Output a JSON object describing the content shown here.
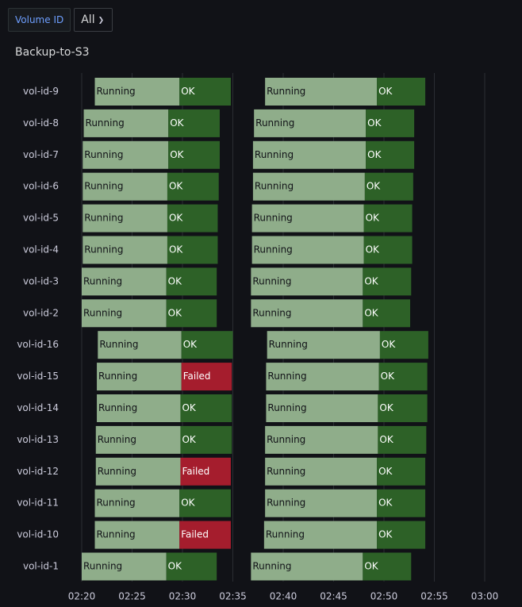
{
  "variables": {
    "label": "Volume ID",
    "value": "All"
  },
  "panel": {
    "title": "Backup-to-S3"
  },
  "colors": {
    "running": "#8fad8a",
    "ok": "#2d6127",
    "failed": "#a51d2d",
    "running_text": "#111217",
    "ok_text": "#ffffff",
    "failed_text": "#ffffff",
    "grid": "#2a2d33"
  },
  "chart_data": {
    "type": "state-timeline",
    "title": "Backup-to-S3",
    "x_tick_labels": [
      "02:20",
      "02:25",
      "02:30",
      "02:35",
      "02:40",
      "02:45",
      "02:50",
      "02:55",
      "03:00"
    ],
    "x_range": [
      "02:20",
      "03:01"
    ],
    "grid": true,
    "rows": [
      {
        "label": "vol-id-9",
        "segments": [
          {
            "state": "Running",
            "start": "02:21.3",
            "end": "02:29.7"
          },
          {
            "state": "OK",
            "start": "02:29.7",
            "end": "02:34.8"
          },
          {
            "state": "Running",
            "start": "02:38.2",
            "end": "02:49.3"
          },
          {
            "state": "OK",
            "start": "02:49.3",
            "end": "02:54.1"
          }
        ]
      },
      {
        "label": "vol-id-8",
        "segments": [
          {
            "state": "Running",
            "start": "02:20.2",
            "end": "02:28.6"
          },
          {
            "state": "OK",
            "start": "02:28.6",
            "end": "02:33.7"
          },
          {
            "state": "Running",
            "start": "02:37.1",
            "end": "02:48.2"
          },
          {
            "state": "OK",
            "start": "02:48.2",
            "end": "02:53.0"
          }
        ]
      },
      {
        "label": "vol-id-7",
        "segments": [
          {
            "state": "Running",
            "start": "02:20.1",
            "end": "02:28.6"
          },
          {
            "state": "OK",
            "start": "02:28.6",
            "end": "02:33.7"
          },
          {
            "state": "Running",
            "start": "02:37.0",
            "end": "02:48.2"
          },
          {
            "state": "OK",
            "start": "02:48.2",
            "end": "02:53.0"
          }
        ]
      },
      {
        "label": "vol-id-6",
        "segments": [
          {
            "state": "Running",
            "start": "02:20.1",
            "end": "02:28.5"
          },
          {
            "state": "OK",
            "start": "02:28.5",
            "end": "02:33.6"
          },
          {
            "state": "Running",
            "start": "02:37.0",
            "end": "02:48.1"
          },
          {
            "state": "OK",
            "start": "02:48.1",
            "end": "02:52.9"
          }
        ]
      },
      {
        "label": "vol-id-5",
        "segments": [
          {
            "state": "Running",
            "start": "02:20.1",
            "end": "02:28.5"
          },
          {
            "state": "OK",
            "start": "02:28.5",
            "end": "02:33.5"
          },
          {
            "state": "Running",
            "start": "02:36.9",
            "end": "02:48.0"
          },
          {
            "state": "OK",
            "start": "02:48.0",
            "end": "02:52.8"
          }
        ]
      },
      {
        "label": "vol-id-4",
        "segments": [
          {
            "state": "Running",
            "start": "02:20.1",
            "end": "02:28.5"
          },
          {
            "state": "OK",
            "start": "02:28.5",
            "end": "02:33.5"
          },
          {
            "state": "Running",
            "start": "02:36.9",
            "end": "02:48.0"
          },
          {
            "state": "OK",
            "start": "02:48.0",
            "end": "02:52.8"
          }
        ]
      },
      {
        "label": "vol-id-3",
        "segments": [
          {
            "state": "Running",
            "start": "02:20.0",
            "end": "02:28.4"
          },
          {
            "state": "OK",
            "start": "02:28.4",
            "end": "02:33.4"
          },
          {
            "state": "Running",
            "start": "02:36.8",
            "end": "02:47.9"
          },
          {
            "state": "OK",
            "start": "02:47.9",
            "end": "02:52.7"
          }
        ]
      },
      {
        "label": "vol-id-2",
        "segments": [
          {
            "state": "Running",
            "start": "02:20.0",
            "end": "02:28.4"
          },
          {
            "state": "OK",
            "start": "02:28.4",
            "end": "02:33.4"
          },
          {
            "state": "Running",
            "start": "02:36.8",
            "end": "02:47.9"
          },
          {
            "state": "OK",
            "start": "02:47.9",
            "end": "02:52.6"
          }
        ]
      },
      {
        "label": "vol-id-16",
        "segments": [
          {
            "state": "Running",
            "start": "02:21.6",
            "end": "02:29.9"
          },
          {
            "state": "OK",
            "start": "02:29.9",
            "end": "02:35.0"
          },
          {
            "state": "Running",
            "start": "02:38.4",
            "end": "02:49.6"
          },
          {
            "state": "OK",
            "start": "02:49.6",
            "end": "02:54.4"
          }
        ]
      },
      {
        "label": "vol-id-15",
        "segments": [
          {
            "state": "Running",
            "start": "02:21.5",
            "end": "02:29.9"
          },
          {
            "state": "Failed",
            "start": "02:29.9",
            "end": "02:34.9"
          },
          {
            "state": "Running",
            "start": "02:38.3",
            "end": "02:49.5"
          },
          {
            "state": "OK",
            "start": "02:49.5",
            "end": "02:54.3"
          }
        ]
      },
      {
        "label": "vol-id-14",
        "segments": [
          {
            "state": "Running",
            "start": "02:21.5",
            "end": "02:29.8"
          },
          {
            "state": "OK",
            "start": "02:29.8",
            "end": "02:34.9"
          },
          {
            "state": "Running",
            "start": "02:38.3",
            "end": "02:49.4"
          },
          {
            "state": "OK",
            "start": "02:49.4",
            "end": "02:54.3"
          }
        ]
      },
      {
        "label": "vol-id-13",
        "segments": [
          {
            "state": "Running",
            "start": "02:21.4",
            "end": "02:29.8"
          },
          {
            "state": "OK",
            "start": "02:29.8",
            "end": "02:34.9"
          },
          {
            "state": "Running",
            "start": "02:38.2",
            "end": "02:49.4"
          },
          {
            "state": "OK",
            "start": "02:49.4",
            "end": "02:54.2"
          }
        ]
      },
      {
        "label": "vol-id-12",
        "segments": [
          {
            "state": "Running",
            "start": "02:21.4",
            "end": "02:29.8"
          },
          {
            "state": "Failed",
            "start": "02:29.8",
            "end": "02:34.8"
          },
          {
            "state": "Running",
            "start": "02:38.2",
            "end": "02:49.3"
          },
          {
            "state": "OK",
            "start": "02:49.3",
            "end": "02:54.1"
          }
        ]
      },
      {
        "label": "vol-id-11",
        "segments": [
          {
            "state": "Running",
            "start": "02:21.3",
            "end": "02:29.7"
          },
          {
            "state": "OK",
            "start": "02:29.7",
            "end": "02:34.8"
          },
          {
            "state": "Running",
            "start": "02:38.2",
            "end": "02:49.3"
          },
          {
            "state": "OK",
            "start": "02:49.3",
            "end": "02:54.1"
          }
        ]
      },
      {
        "label": "vol-id-10",
        "segments": [
          {
            "state": "Running",
            "start": "02:21.3",
            "end": "02:29.7"
          },
          {
            "state": "Failed",
            "start": "02:29.7",
            "end": "02:34.8"
          },
          {
            "state": "Running",
            "start": "02:38.1",
            "end": "02:49.3"
          },
          {
            "state": "OK",
            "start": "02:49.3",
            "end": "02:54.1"
          }
        ]
      },
      {
        "label": "vol-id-1",
        "segments": [
          {
            "state": "Running",
            "start": "02:20.0",
            "end": "02:28.4"
          },
          {
            "state": "OK",
            "start": "02:28.4",
            "end": "02:33.4"
          },
          {
            "state": "Running",
            "start": "02:36.8",
            "end": "02:47.9"
          },
          {
            "state": "OK",
            "start": "02:47.9",
            "end": "02:52.7"
          }
        ]
      }
    ]
  }
}
